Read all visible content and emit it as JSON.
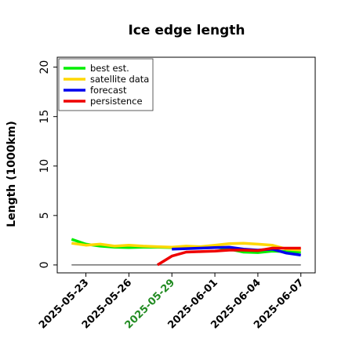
{
  "chart_data": {
    "type": "line",
    "title": "Ice edge length",
    "xlabel": "",
    "ylabel": "Length (1000km)",
    "ylim": [
      -0.8,
      21
    ],
    "xlim": [
      "2025-05-21",
      "2025-06-08"
    ],
    "yticks": [
      0,
      5,
      10,
      15,
      20
    ],
    "xticks": [
      {
        "label": "2025-05-23",
        "date": "2025-05-23",
        "color": "#000000"
      },
      {
        "label": "2025-05-26",
        "date": "2025-05-26",
        "color": "#000000"
      },
      {
        "label": "2025-05-29",
        "date": "2025-05-29",
        "color": "#228b22"
      },
      {
        "label": "2025-06-01",
        "date": "2025-06-01",
        "color": "#000000"
      },
      {
        "label": "2025-06-04",
        "date": "2025-06-04",
        "color": "#000000"
      },
      {
        "label": "2025-06-07",
        "date": "2025-06-07",
        "color": "#000000"
      }
    ],
    "legend_position": "top-left",
    "reference_line": {
      "y": 0,
      "from": "2025-05-22",
      "to": "2025-06-07",
      "color": "#555555"
    },
    "series": [
      {
        "name": "best est.",
        "color": "#00ee00",
        "points": [
          [
            "2025-05-22",
            2.6
          ],
          [
            "2025-05-23",
            2.1
          ],
          [
            "2025-05-24",
            1.9
          ],
          [
            "2025-05-25",
            1.8
          ],
          [
            "2025-05-26",
            1.75
          ],
          [
            "2025-05-27",
            1.8
          ],
          [
            "2025-05-28",
            1.8
          ],
          [
            "2025-05-29",
            1.75
          ],
          [
            "2025-05-30",
            1.7
          ],
          [
            "2025-05-31",
            1.75
          ],
          [
            "2025-06-01",
            1.8
          ],
          [
            "2025-06-02",
            1.6
          ],
          [
            "2025-06-03",
            1.3
          ],
          [
            "2025-06-04",
            1.25
          ],
          [
            "2025-06-05",
            1.4
          ],
          [
            "2025-06-06",
            1.35
          ],
          [
            "2025-06-07",
            1.3
          ]
        ]
      },
      {
        "name": "satellite data",
        "color": "#ffd700",
        "points": [
          [
            "2025-05-22",
            2.2
          ],
          [
            "2025-05-23",
            2.0
          ],
          [
            "2025-05-24",
            2.1
          ],
          [
            "2025-05-25",
            1.9
          ],
          [
            "2025-05-26",
            2.0
          ],
          [
            "2025-05-27",
            1.9
          ],
          [
            "2025-05-28",
            1.85
          ],
          [
            "2025-05-29",
            1.8
          ],
          [
            "2025-05-30",
            1.9
          ],
          [
            "2025-05-31",
            1.85
          ],
          [
            "2025-06-01",
            2.0
          ],
          [
            "2025-06-02",
            2.15
          ],
          [
            "2025-06-03",
            2.2
          ],
          [
            "2025-06-04",
            2.1
          ],
          [
            "2025-06-05",
            2.0
          ],
          [
            "2025-06-06",
            1.6
          ],
          [
            "2025-06-07",
            1.5
          ]
        ]
      },
      {
        "name": "forecast",
        "color": "#0000ee",
        "points": [
          [
            "2025-05-29",
            1.6
          ],
          [
            "2025-05-30",
            1.65
          ],
          [
            "2025-05-31",
            1.7
          ],
          [
            "2025-06-01",
            1.75
          ],
          [
            "2025-06-02",
            1.8
          ],
          [
            "2025-06-03",
            1.6
          ],
          [
            "2025-06-04",
            1.5
          ],
          [
            "2025-06-05",
            1.6
          ],
          [
            "2025-06-06",
            1.2
          ],
          [
            "2025-06-07",
            1.0
          ]
        ]
      },
      {
        "name": "persistence",
        "color": "#ee0000",
        "points": [
          [
            "2025-05-28",
            0.0
          ],
          [
            "2025-05-29",
            0.9
          ],
          [
            "2025-05-30",
            1.3
          ],
          [
            "2025-05-31",
            1.35
          ],
          [
            "2025-06-01",
            1.4
          ],
          [
            "2025-06-02",
            1.5
          ],
          [
            "2025-06-03",
            1.5
          ],
          [
            "2025-06-04",
            1.45
          ],
          [
            "2025-06-05",
            1.7
          ],
          [
            "2025-06-06",
            1.7
          ],
          [
            "2025-06-07",
            1.7
          ]
        ]
      }
    ]
  }
}
